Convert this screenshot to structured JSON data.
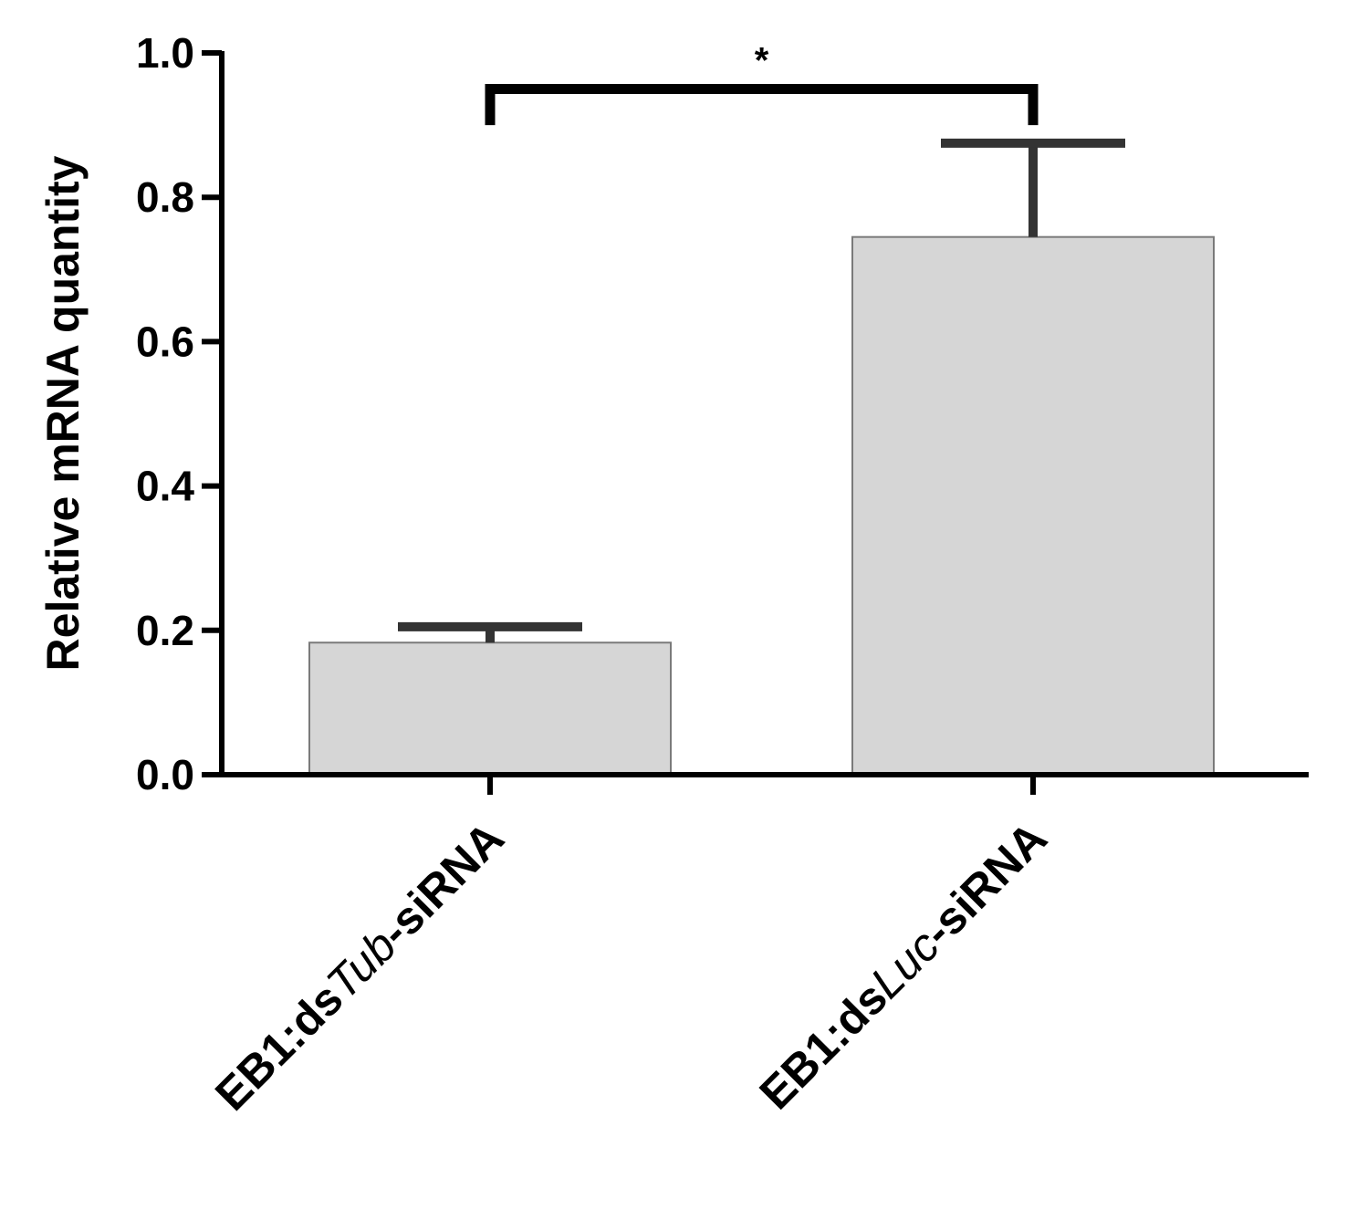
{
  "chart_data": {
    "type": "bar",
    "title": "",
    "xlabel": "",
    "ylabel": "Relative mRNA quantity",
    "ylim": [
      0,
      1.0
    ],
    "yticks": [
      {
        "value": 0.0,
        "label": "0.0"
      },
      {
        "value": 0.2,
        "label": "0.2"
      },
      {
        "value": 0.4,
        "label": "0.4"
      },
      {
        "value": 0.6,
        "label": "0.6"
      },
      {
        "value": 0.8,
        "label": "0.8"
      },
      {
        "value": 1.0,
        "label": "1.0"
      }
    ],
    "categories": [
      {
        "prefix": "EB1:ds",
        "italic": "Tub",
        "suffix": "-siRNA"
      },
      {
        "prefix": "EB1:ds",
        "italic": "Luc",
        "suffix": "-siRNA"
      }
    ],
    "values": [
      0.183,
      0.745
    ],
    "errors": [
      0.022,
      0.13
    ],
    "bar_color": "#d6d6d6",
    "bar_edge_color": "#7a7a7a",
    "errorbar_color": "#333333",
    "axis_color": "#000000",
    "grid": false,
    "annotations": [
      {
        "type": "significance",
        "from": 0,
        "to": 1,
        "label": "*",
        "y": 0.95,
        "drop_to": 0.9
      }
    ]
  }
}
